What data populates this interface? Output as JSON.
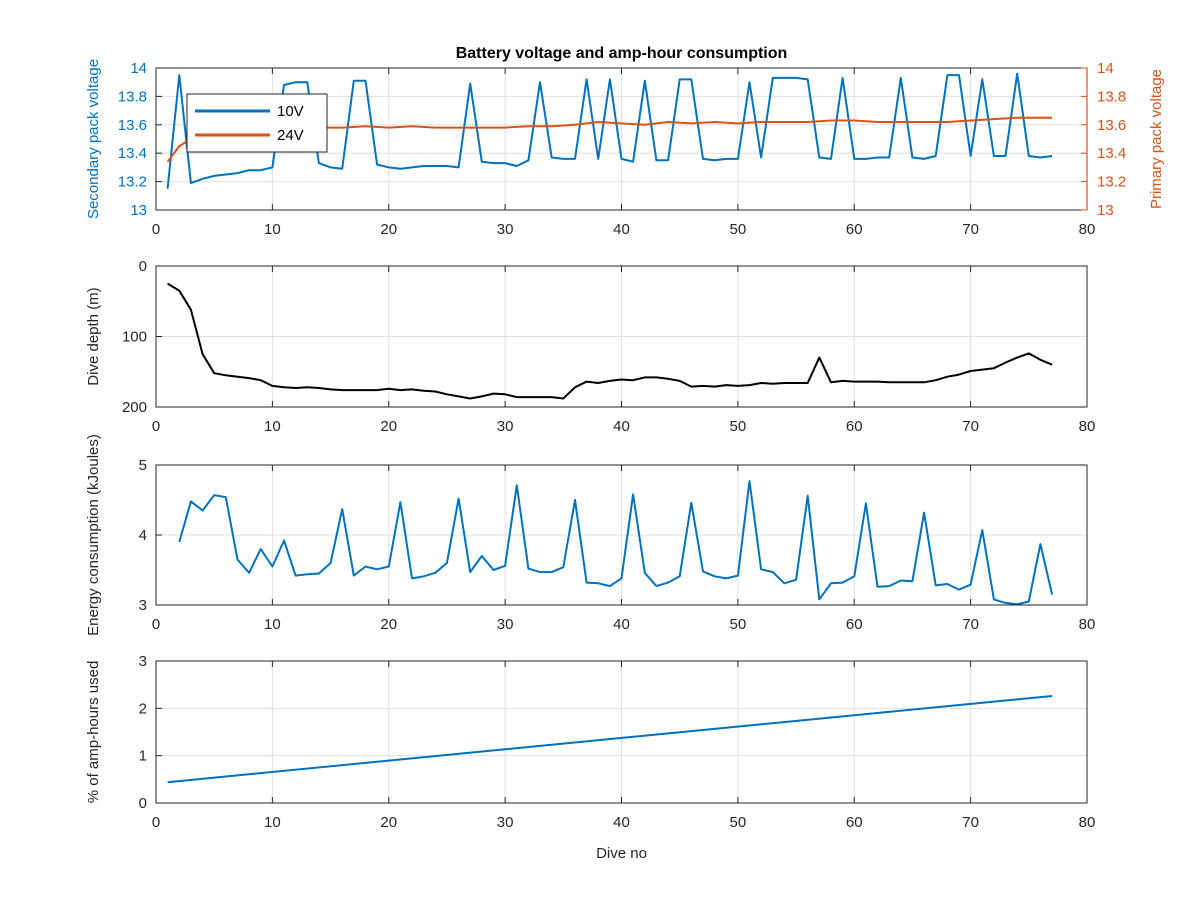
{
  "chart_data": [
    {
      "type": "line",
      "title": "Battery voltage and amp-hour consumption",
      "ylabel": "Secondary pack voltage",
      "ylabel_right": "Primary pack voltage",
      "xlim": [
        0,
        80
      ],
      "ylim": [
        13,
        14
      ],
      "ylim_right": [
        13,
        14
      ],
      "x_ticks": [
        "0",
        "10",
        "20",
        "30",
        "40",
        "50",
        "60",
        "70",
        "80"
      ],
      "y_ticks": [
        "13",
        "13.2",
        "13.4",
        "13.6",
        "13.8",
        "14"
      ],
      "y_ticks_right": [
        "13",
        "13.2",
        "13.4",
        "13.6",
        "13.8",
        "14"
      ],
      "grid": true,
      "legend_position": "top-left",
      "colors": {
        "left_axis": "#0072bd",
        "right_axis": "#d95319"
      },
      "series": [
        {
          "name": "10V",
          "color": "#0072bd",
          "axis": "left",
          "x": [
            1,
            2,
            3,
            4,
            5,
            6,
            7,
            8,
            9,
            10,
            11,
            12,
            13,
            14,
            15,
            16,
            17,
            18,
            19,
            20,
            21,
            22,
            23,
            24,
            25,
            26,
            27,
            28,
            29,
            30,
            31,
            32,
            33,
            34,
            35,
            36,
            37,
            38,
            39,
            40,
            41,
            42,
            43,
            44,
            45,
            46,
            47,
            48,
            49,
            50,
            51,
            52,
            53,
            54,
            55,
            56,
            57,
            58,
            59,
            60,
            61,
            62,
            63,
            64,
            65,
            66,
            67,
            68,
            69,
            70,
            71,
            72,
            73,
            74,
            75,
            76,
            77
          ],
          "values": [
            13.15,
            13.95,
            13.19,
            13.22,
            13.24,
            13.25,
            13.26,
            13.28,
            13.28,
            13.3,
            13.88,
            13.9,
            13.9,
            13.33,
            13.3,
            13.29,
            13.91,
            13.91,
            13.32,
            13.3,
            13.29,
            13.3,
            13.31,
            13.31,
            13.31,
            13.3,
            13.89,
            13.34,
            13.33,
            13.33,
            13.31,
            13.35,
            13.9,
            13.37,
            13.36,
            13.36,
            13.92,
            13.36,
            13.92,
            13.36,
            13.34,
            13.91,
            13.35,
            13.35,
            13.92,
            13.92,
            13.36,
            13.35,
            13.36,
            13.36,
            13.9,
            13.37,
            13.93,
            13.93,
            13.93,
            13.92,
            13.37,
            13.36,
            13.93,
            13.36,
            13.36,
            13.37,
            13.37,
            13.93,
            13.37,
            13.36,
            13.38,
            13.95,
            13.95,
            13.38,
            13.92,
            13.38,
            13.38,
            13.96,
            13.38,
            13.37,
            13.38
          ]
        },
        {
          "name": "24V",
          "color": "#d95319",
          "axis": "right",
          "x": [
            1,
            2,
            3,
            4,
            5,
            6,
            8,
            10,
            12,
            14,
            16,
            18,
            20,
            22,
            24,
            26,
            28,
            30,
            32,
            34,
            36,
            38,
            40,
            42,
            44,
            46,
            48,
            50,
            52,
            54,
            56,
            58,
            60,
            62,
            64,
            66,
            68,
            70,
            72,
            74,
            76,
            77
          ],
          "values": [
            13.34,
            13.45,
            13.5,
            13.53,
            13.55,
            13.56,
            13.57,
            13.58,
            13.58,
            13.58,
            13.58,
            13.59,
            13.58,
            13.59,
            13.58,
            13.58,
            13.58,
            13.58,
            13.59,
            13.59,
            13.6,
            13.62,
            13.61,
            13.6,
            13.62,
            13.61,
            13.62,
            13.61,
            13.62,
            13.62,
            13.62,
            13.63,
            13.63,
            13.62,
            13.62,
            13.62,
            13.62,
            13.63,
            13.64,
            13.65,
            13.65,
            13.65
          ]
        }
      ]
    },
    {
      "type": "line",
      "ylabel": "Dive depth (m)",
      "xlim": [
        0,
        80
      ],
      "ylim": [
        0,
        200
      ],
      "y_reversed": true,
      "x_ticks": [
        "0",
        "10",
        "20",
        "30",
        "40",
        "50",
        "60",
        "70",
        "80"
      ],
      "y_ticks": [
        "0",
        "100",
        "200"
      ],
      "grid": true,
      "series": [
        {
          "color": "#000000",
          "x": [
            1,
            2,
            3,
            4,
            5,
            6,
            7,
            8,
            9,
            10,
            11,
            12,
            13,
            14,
            15,
            16,
            17,
            18,
            19,
            20,
            21,
            22,
            23,
            24,
            25,
            26,
            27,
            28,
            29,
            30,
            31,
            32,
            33,
            34,
            35,
            36,
            37,
            38,
            39,
            40,
            41,
            42,
            43,
            44,
            45,
            46,
            47,
            48,
            49,
            50,
            51,
            52,
            53,
            54,
            55,
            56,
            57,
            58,
            59,
            60,
            61,
            62,
            63,
            64,
            65,
            66,
            67,
            68,
            69,
            70,
            71,
            72,
            73,
            74,
            75,
            76,
            77
          ],
          "values": [
            25,
            35,
            62,
            125,
            152,
            155,
            157,
            159,
            162,
            170,
            172,
            173,
            172,
            173,
            175,
            176,
            176,
            176,
            176,
            174,
            176,
            175,
            177,
            178,
            182,
            185,
            188,
            185,
            181,
            182,
            186,
            186,
            186,
            186,
            188,
            172,
            164,
            166,
            163,
            161,
            162,
            158,
            158,
            160,
            163,
            171,
            170,
            171,
            169,
            170,
            169,
            166,
            167,
            166,
            166,
            166,
            130,
            165,
            163,
            164,
            164,
            164,
            165,
            165,
            165,
            165,
            162,
            157,
            154,
            149,
            147,
            145,
            137,
            130,
            124,
            133,
            140
          ]
        }
      ]
    },
    {
      "type": "line",
      "ylabel": "Energy consumption (kJoules)",
      "xlim": [
        0,
        80
      ],
      "ylim": [
        3,
        5
      ],
      "x_ticks": [
        "0",
        "10",
        "20",
        "30",
        "40",
        "50",
        "60",
        "70",
        "80"
      ],
      "y_ticks": [
        "3",
        "4",
        "5"
      ],
      "grid": true,
      "series": [
        {
          "color": "#0072bd",
          "x": [
            2,
            3,
            4,
            5,
            6,
            7,
            8,
            9,
            10,
            11,
            12,
            13,
            14,
            15,
            16,
            17,
            18,
            19,
            20,
            21,
            22,
            23,
            24,
            25,
            26,
            27,
            28,
            29,
            30,
            31,
            32,
            33,
            34,
            35,
            36,
            37,
            38,
            39,
            40,
            41,
            42,
            43,
            44,
            45,
            46,
            47,
            48,
            49,
            50,
            51,
            52,
            53,
            54,
            55,
            56,
            57,
            58,
            59,
            60,
            61,
            62,
            63,
            64,
            65,
            66,
            67,
            68,
            69,
            70,
            71,
            72,
            73,
            74,
            75,
            76,
            77
          ],
          "values": [
            3.9,
            4.48,
            4.35,
            4.57,
            4.54,
            3.65,
            3.46,
            3.8,
            3.55,
            3.92,
            3.42,
            3.44,
            3.45,
            3.6,
            4.37,
            3.42,
            3.55,
            3.51,
            3.55,
            4.47,
            3.38,
            3.41,
            3.46,
            3.6,
            4.52,
            3.47,
            3.7,
            3.5,
            3.56,
            4.71,
            3.52,
            3.47,
            3.47,
            3.54,
            4.5,
            3.32,
            3.31,
            3.27,
            3.38,
            4.58,
            3.46,
            3.27,
            3.32,
            3.41,
            4.46,
            3.48,
            3.41,
            3.38,
            3.42,
            4.77,
            3.51,
            3.47,
            3.31,
            3.36,
            4.56,
            3.08,
            3.31,
            3.32,
            3.41,
            4.45,
            3.26,
            3.27,
            3.35,
            3.34,
            4.32,
            3.28,
            3.3,
            3.22,
            3.29,
            4.07,
            3.08,
            3.03,
            3.01,
            3.05,
            3.87,
            3.15
          ]
        }
      ]
    },
    {
      "type": "line",
      "xlabel": "Dive no",
      "ylabel": "% of amp-hours used",
      "xlim": [
        0,
        80
      ],
      "ylim": [
        0,
        3
      ],
      "x_ticks": [
        "0",
        "10",
        "20",
        "30",
        "40",
        "50",
        "60",
        "70",
        "80"
      ],
      "y_ticks": [
        "0",
        "1",
        "2",
        "3"
      ],
      "grid": true,
      "series": [
        {
          "color": "#0072bd",
          "x": [
            1,
            77
          ],
          "values": [
            0.44,
            2.26
          ]
        }
      ]
    }
  ]
}
